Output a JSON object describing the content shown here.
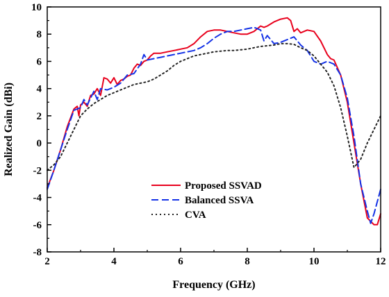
{
  "chart_data": {
    "type": "line",
    "xlabel": "Frequency (GHz)",
    "ylabel": "Realized Gain (dBi)",
    "xlim": [
      2,
      12
    ],
    "ylim": [
      -8,
      10
    ],
    "xticks": [
      "2",
      "4",
      "6",
      "8",
      "10",
      "12"
    ],
    "yticks": [
      "-8",
      "-6",
      "-4",
      "-2",
      "0",
      "2",
      "4",
      "6",
      "8",
      "10"
    ],
    "grid": false,
    "legend_position": "lower-center",
    "series": [
      {
        "name": "Proposed SSVAD",
        "color": "#e8001c",
        "style": "solid",
        "x": [
          2.0,
          2.2,
          2.4,
          2.6,
          2.8,
          2.9,
          2.95,
          3.0,
          3.1,
          3.2,
          3.3,
          3.4,
          3.5,
          3.6,
          3.7,
          3.8,
          3.9,
          4.0,
          4.1,
          4.2,
          4.3,
          4.4,
          4.5,
          4.6,
          4.7,
          4.8,
          4.9,
          5.0,
          5.1,
          5.2,
          5.4,
          5.6,
          5.8,
          6.0,
          6.2,
          6.4,
          6.6,
          6.8,
          7.0,
          7.2,
          7.4,
          7.6,
          7.8,
          8.0,
          8.2,
          8.4,
          8.5,
          8.6,
          8.8,
          9.0,
          9.2,
          9.3,
          9.4,
          9.5,
          9.6,
          9.8,
          10.0,
          10.2,
          10.4,
          10.5,
          10.6,
          10.8,
          11.0,
          11.2,
          11.4,
          11.6,
          11.8,
          11.9,
          12.0
        ],
        "y": [
          -3.3,
          -2.0,
          -0.5,
          1.2,
          2.5,
          2.7,
          2.0,
          2.8,
          3.0,
          2.7,
          3.5,
          3.6,
          4.0,
          3.5,
          4.8,
          4.7,
          4.4,
          4.8,
          4.3,
          4.6,
          4.7,
          4.9,
          5.0,
          5.5,
          5.8,
          5.7,
          6.0,
          6.1,
          6.4,
          6.6,
          6.6,
          6.7,
          6.8,
          6.9,
          7.0,
          7.3,
          7.8,
          8.2,
          8.3,
          8.3,
          8.2,
          8.1,
          8.0,
          8.0,
          8.2,
          8.6,
          8.5,
          8.6,
          8.9,
          9.1,
          9.2,
          9.0,
          8.2,
          8.4,
          8.1,
          8.3,
          8.2,
          7.5,
          6.5,
          6.2,
          6.1,
          5.0,
          3.0,
          0.0,
          -3.0,
          -5.5,
          -6.0,
          -6.0,
          -5.2
        ]
      },
      {
        "name": "Balanced SSVA",
        "color": "#1432e6",
        "style": "dashed",
        "x": [
          2.0,
          2.2,
          2.4,
          2.6,
          2.8,
          3.0,
          3.1,
          3.2,
          3.3,
          3.4,
          3.5,
          3.6,
          3.8,
          4.0,
          4.2,
          4.4,
          4.6,
          4.8,
          4.9,
          5.0,
          5.2,
          5.4,
          5.6,
          5.8,
          6.0,
          6.2,
          6.4,
          6.6,
          6.8,
          7.0,
          7.2,
          7.4,
          7.6,
          7.8,
          8.0,
          8.2,
          8.4,
          8.5,
          8.6,
          8.8,
          9.0,
          9.2,
          9.3,
          9.4,
          9.5,
          9.6,
          9.8,
          10.0,
          10.2,
          10.4,
          10.6,
          10.8,
          11.0,
          11.2,
          11.4,
          11.6,
          11.7,
          11.8,
          12.0
        ],
        "y": [
          -3.4,
          -2.0,
          -0.5,
          1.0,
          2.4,
          2.6,
          3.2,
          2.8,
          3.3,
          3.8,
          3.2,
          4.0,
          3.9,
          4.1,
          4.4,
          5.0,
          5.1,
          5.8,
          6.5,
          6.1,
          6.2,
          6.3,
          6.4,
          6.5,
          6.6,
          6.7,
          6.8,
          7.0,
          7.3,
          7.7,
          8.0,
          8.2,
          8.2,
          8.3,
          8.4,
          8.5,
          8.3,
          7.5,
          7.9,
          7.3,
          7.4,
          7.6,
          7.7,
          7.8,
          7.5,
          7.2,
          6.8,
          6.0,
          5.8,
          6.0,
          5.8,
          5.0,
          3.3,
          0.5,
          -3.0,
          -5.0,
          -5.9,
          -5.2,
          -3.4
        ]
      },
      {
        "name": "CVA",
        "color": "#222222",
        "style": "dotted",
        "x": [
          2.0,
          2.2,
          2.4,
          2.6,
          2.8,
          3.0,
          3.2,
          3.4,
          3.6,
          3.8,
          4.0,
          4.2,
          4.4,
          4.6,
          4.8,
          5.0,
          5.2,
          5.4,
          5.6,
          5.8,
          6.0,
          6.2,
          6.4,
          6.6,
          6.8,
          7.0,
          7.2,
          7.4,
          7.6,
          7.8,
          8.0,
          8.2,
          8.4,
          8.6,
          8.8,
          9.0,
          9.2,
          9.4,
          9.6,
          9.8,
          10.0,
          10.2,
          10.4,
          10.6,
          10.8,
          11.0,
          11.2,
          11.4,
          11.6,
          11.8,
          12.0
        ],
        "y": [
          -2.0,
          -1.6,
          -1.0,
          0.0,
          1.0,
          2.0,
          2.5,
          2.9,
          3.2,
          3.5,
          3.7,
          3.9,
          4.1,
          4.3,
          4.4,
          4.5,
          4.7,
          5.0,
          5.3,
          5.7,
          6.0,
          6.2,
          6.4,
          6.5,
          6.6,
          6.7,
          6.75,
          6.8,
          6.8,
          6.85,
          6.9,
          7.0,
          7.1,
          7.15,
          7.2,
          7.3,
          7.3,
          7.25,
          7.0,
          6.8,
          6.4,
          5.8,
          5.2,
          4.2,
          2.6,
          0.5,
          -1.8,
          -1.2,
          0.0,
          1.0,
          2.0
        ]
      }
    ]
  }
}
